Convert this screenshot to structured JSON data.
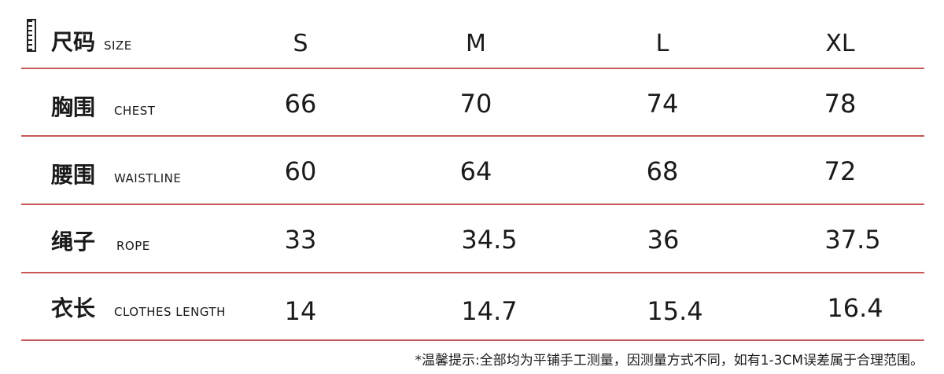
{
  "header": {
    "label_cn": "尺码",
    "label_en": "SIZE",
    "sizes": [
      "S",
      "M",
      "L",
      "XL"
    ],
    "icon": "ruler-icon"
  },
  "rows": [
    {
      "label_cn": "胸围",
      "label_en": "CHEST",
      "values": [
        "66",
        "70",
        "74",
        "78"
      ]
    },
    {
      "label_cn": "腰围",
      "label_en": "WAISTLINE",
      "values": [
        "60",
        "64",
        "68",
        "72"
      ]
    },
    {
      "label_cn": "绳子",
      "label_en": "ROPE",
      "values": [
        "33",
        "34.5",
        "36",
        "37.5"
      ]
    },
    {
      "label_cn": "衣长",
      "label_en": "CLOTHES LENGTH",
      "values": [
        "14",
        "14.7",
        "15.4",
        "16.4"
      ]
    }
  ],
  "note": "*温馨提示:全部均为平铺手工测量，因测量方式不同，如有1-3CM误差属于合理范围。",
  "colors": {
    "divider": "#c85a5a",
    "text": "#1a1a1a"
  }
}
